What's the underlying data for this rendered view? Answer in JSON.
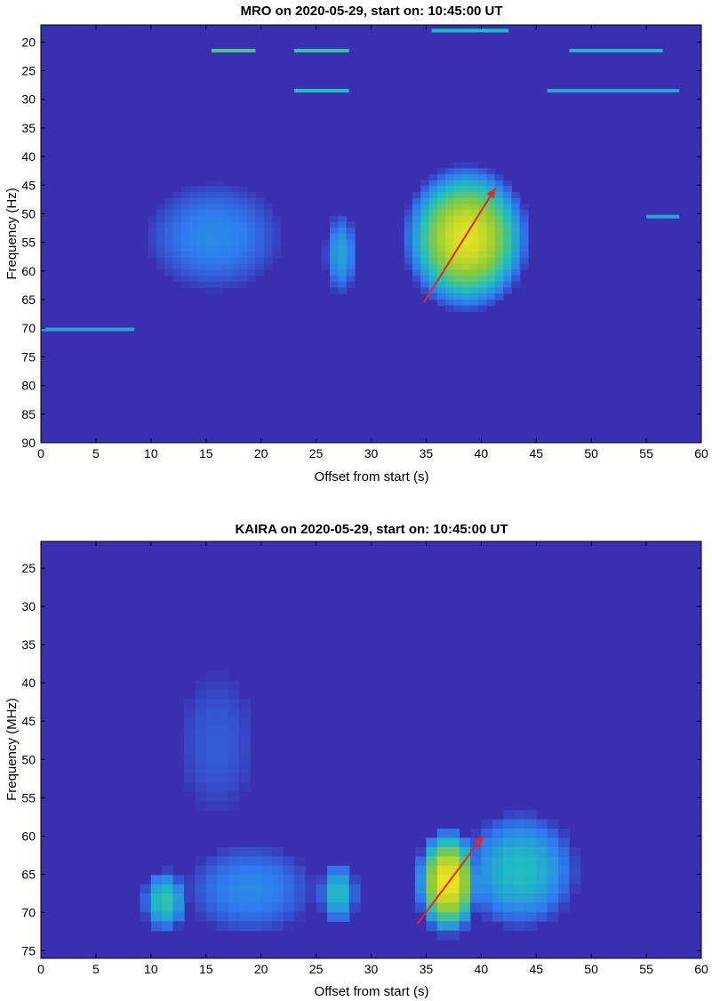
{
  "colors": {
    "background_low": "#3a2fb0",
    "mid_blue": "#2f7cf0",
    "cyan": "#1fbfc0",
    "green": "#8ccc3a",
    "yellow": "#f9e51c",
    "arrow": "#e8281a"
  },
  "chart_data": [
    {
      "type": "heatmap",
      "title": "MRO on 2020-05-29, start on: 10:45:00 UT",
      "xlabel": "Offset from start (s)",
      "ylabel": "Frequency (Hz)",
      "xlim": [
        0,
        60
      ],
      "ylim": [
        17,
        90
      ],
      "y_reversed": true,
      "colormap": "parula",
      "xticks": [
        0,
        5,
        10,
        15,
        20,
        25,
        30,
        35,
        40,
        45,
        50,
        55,
        60
      ],
      "yticks": [
        20,
        25,
        30,
        35,
        40,
        45,
        50,
        55,
        60,
        65,
        70,
        75,
        80,
        85,
        90
      ],
      "features": [
        {
          "t0": 33.8,
          "t1": 43.5,
          "f0": 43.5,
          "f1": 65,
          "peak": 0.95,
          "note": "main burst"
        },
        {
          "t0": 36.0,
          "t1": 40.5,
          "f0": 49.5,
          "f1": 53.5,
          "peak": 0.95,
          "note": "burst core"
        },
        {
          "t0": 26.0,
          "t1": 28.5,
          "f0": 51,
          "f1": 63,
          "peak": 0.4,
          "note": "faint feature"
        },
        {
          "t0": 10.5,
          "t1": 21.0,
          "f0": 46,
          "f1": 62,
          "peak": 0.3,
          "note": "faint feature"
        }
      ],
      "horizontal_lines": [
        {
          "f": 18,
          "t0": 35.5,
          "t1": 42.5,
          "peak": 0.5
        },
        {
          "f": 21.5,
          "t0": 15.5,
          "t1": 19.5,
          "peak": 0.6
        },
        {
          "f": 21.5,
          "t0": 23.0,
          "t1": 28.0,
          "peak": 0.55
        },
        {
          "f": 21.5,
          "t0": 48.0,
          "t1": 56.5,
          "peak": 0.45
        },
        {
          "f": 28.5,
          "t0": 23.0,
          "t1": 28.0,
          "peak": 0.5
        },
        {
          "f": 28.5,
          "t0": 46.0,
          "t1": 58.0,
          "peak": 0.4
        },
        {
          "f": 50.5,
          "t0": 55.0,
          "t1": 58.0,
          "peak": 0.4
        },
        {
          "f": 70.2,
          "t0": 0.0,
          "t1": 8.5,
          "peak": 0.4
        }
      ],
      "arrow": {
        "t0": 34.8,
        "f0": 65.5,
        "t1": 41.3,
        "f1": 45.5
      }
    },
    {
      "type": "heatmap",
      "title": "KAIRA on 2020-05-29, start on: 10:45:00 UT",
      "xlabel": "Offset from start (s)",
      "ylabel": "Frequency (MHz)",
      "xlim": [
        0,
        60
      ],
      "ylim": [
        21.5,
        76
      ],
      "y_reversed": true,
      "colormap": "parula",
      "xticks": [
        0,
        5,
        10,
        15,
        20,
        25,
        30,
        35,
        40,
        45,
        50,
        55,
        60
      ],
      "yticks": [
        25,
        30,
        35,
        40,
        45,
        50,
        55,
        60,
        65,
        70,
        75
      ],
      "features": [
        {
          "t0": 34.5,
          "t1": 39.5,
          "f0": 60,
          "f1": 72,
          "peak": 1.0,
          "note": "main burst"
        },
        {
          "t0": 39.0,
          "t1": 48.0,
          "f0": 58,
          "f1": 71,
          "peak": 0.5,
          "note": "burst tail"
        },
        {
          "t0": 9.5,
          "t1": 13.0,
          "f0": 65,
          "f1": 72,
          "peak": 0.55,
          "note": "faint feature"
        },
        {
          "t0": 25.5,
          "t1": 28.5,
          "f0": 64,
          "f1": 71,
          "peak": 0.5,
          "note": "faint feature"
        },
        {
          "t0": 14.0,
          "t1": 24.0,
          "f0": 62,
          "f1": 72,
          "peak": 0.3,
          "note": "faint feature"
        },
        {
          "t0": 13.0,
          "t1": 19.0,
          "f0": 40,
          "f1": 56,
          "peak": 0.15,
          "note": "faint drift"
        }
      ],
      "horizontal_lines": [],
      "arrow": {
        "t0": 34.2,
        "f0": 71.5,
        "t1": 40.2,
        "f1": 60.0
      }
    }
  ]
}
